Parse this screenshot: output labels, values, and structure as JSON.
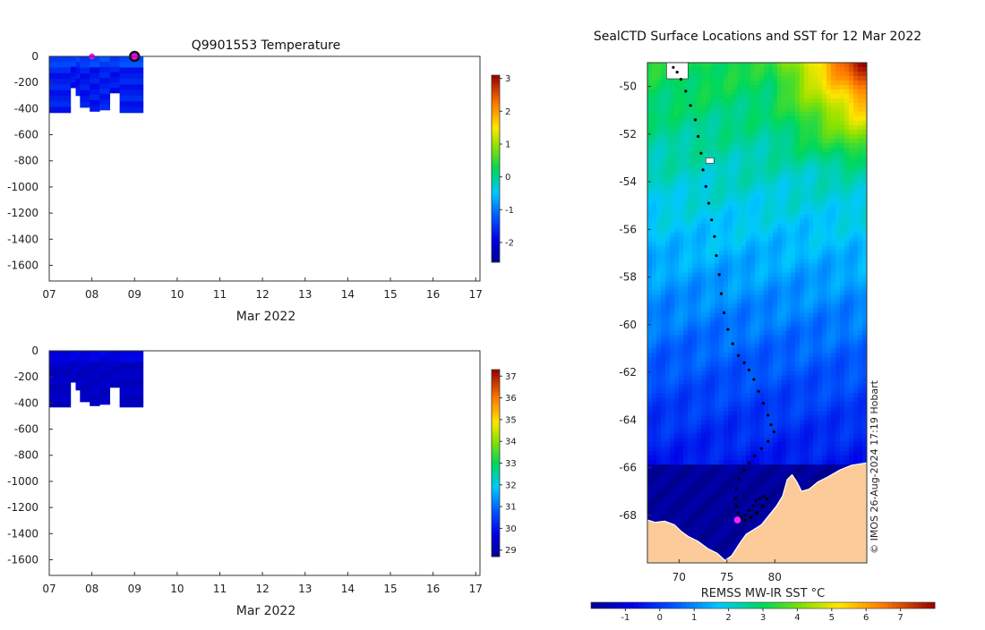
{
  "chart_data": [
    {
      "type": "heatmap",
      "title": "Q9901553  Temperature",
      "xlabel": "Mar 2022",
      "ylabel": "",
      "x_ticks": [
        "07",
        "08",
        "09",
        "10",
        "11",
        "12",
        "13",
        "14",
        "15",
        "16",
        "17"
      ],
      "x_range_days": [
        7,
        17.1
      ],
      "y_ticks": [
        0,
        -200,
        -400,
        -600,
        -800,
        -1000,
        -1200,
        -1400,
        -1600
      ],
      "ylim": [
        -1720,
        0
      ],
      "colorbar": {
        "ticks": [
          -2,
          -1,
          0,
          1,
          2,
          3
        ],
        "range": [
          -2.6,
          3.1
        ]
      },
      "profiles": [
        {
          "t0": 7.0,
          "t1": 7.5,
          "max_depth": -430,
          "value": -1.8
        },
        {
          "t0": 7.5,
          "t1": 7.62,
          "max_depth": -240,
          "value": -1.9
        },
        {
          "t0": 7.62,
          "t1": 7.72,
          "max_depth": -300,
          "value": -1.9
        },
        {
          "t0": 7.72,
          "t1": 7.95,
          "max_depth": -390,
          "value": -1.85
        },
        {
          "t0": 7.95,
          "t1": 8.18,
          "max_depth": -420,
          "value": -1.85
        },
        {
          "t0": 8.18,
          "t1": 8.42,
          "max_depth": -410,
          "value": -1.8
        },
        {
          "t0": 8.42,
          "t1": 8.65,
          "max_depth": -280,
          "value": -1.85
        },
        {
          "t0": 8.65,
          "t1": 9.2,
          "max_depth": -430,
          "value": -1.8
        }
      ],
      "markers": [
        {
          "x": 8.0,
          "y": 0,
          "color": "#ff00ff"
        },
        {
          "x": 9.0,
          "y": 0,
          "color": "#ff00ff",
          "outlined": true
        }
      ]
    },
    {
      "type": "heatmap",
      "title": "",
      "xlabel": "Mar 2022",
      "ylabel": "",
      "x_ticks": [
        "07",
        "08",
        "09",
        "10",
        "11",
        "12",
        "13",
        "14",
        "15",
        "16",
        "17"
      ],
      "x_range_days": [
        7,
        17.1
      ],
      "y_ticks": [
        0,
        -200,
        -400,
        -600,
        -800,
        -1000,
        -1200,
        -1400,
        -1600
      ],
      "ylim": [
        -1720,
        0
      ],
      "colorbar": {
        "ticks": [
          29,
          30,
          31,
          32,
          33,
          34,
          35,
          36,
          37
        ],
        "range": [
          28.7,
          37.3
        ]
      },
      "profiles": [
        {
          "t0": 7.0,
          "t1": 7.5,
          "max_depth": -430,
          "value": 29.2
        },
        {
          "t0": 7.5,
          "t1": 7.62,
          "max_depth": -240,
          "value": 29.2
        },
        {
          "t0": 7.62,
          "t1": 7.72,
          "max_depth": -300,
          "value": 29.2
        },
        {
          "t0": 7.72,
          "t1": 7.95,
          "max_depth": -390,
          "value": 29.2
        },
        {
          "t0": 7.95,
          "t1": 8.18,
          "max_depth": -420,
          "value": 29.2
        },
        {
          "t0": 8.18,
          "t1": 8.42,
          "max_depth": -410,
          "value": 29.2
        },
        {
          "t0": 8.42,
          "t1": 8.65,
          "max_depth": -280,
          "value": 29.2
        },
        {
          "t0": 8.65,
          "t1": 9.2,
          "max_depth": -430,
          "value": 29.2
        }
      ]
    },
    {
      "type": "heatmap",
      "title": "SealCTD Surface Locations and SST for 12 Mar 2022",
      "x_ticks": [
        70,
        75,
        80
      ],
      "xlim": [
        66.7,
        89.6
      ],
      "y_ticks": [
        -50,
        -52,
        -54,
        -56,
        -58,
        -60,
        -62,
        -64,
        -66,
        -68
      ],
      "ylim": [
        -70,
        -49
      ],
      "colorbar_label": "REMSS MW-IR SST °C",
      "colorbar": {
        "ticks": [
          -1,
          0,
          1,
          2,
          3,
          4,
          5,
          6,
          7
        ],
        "range": [
          -2,
          8
        ]
      },
      "credit": "© IMOS 26-Aug-2024 17:19 Hobart",
      "land_color": "#fdcb9a",
      "track": [
        [
          69.4,
          -49.2
        ],
        [
          69.8,
          -49.4
        ],
        [
          70.2,
          -49.7
        ],
        [
          70.7,
          -50.2
        ],
        [
          71.2,
          -50.8
        ],
        [
          71.7,
          -51.4
        ],
        [
          72.0,
          -52.1
        ],
        [
          72.3,
          -52.8
        ],
        [
          72.5,
          -53.5
        ],
        [
          72.8,
          -54.2
        ],
        [
          73.1,
          -54.9
        ],
        [
          73.4,
          -55.6
        ],
        [
          73.7,
          -56.3
        ],
        [
          73.9,
          -57.1
        ],
        [
          74.2,
          -57.9
        ],
        [
          74.4,
          -58.7
        ],
        [
          74.7,
          -59.5
        ],
        [
          75.1,
          -60.2
        ],
        [
          75.6,
          -60.8
        ],
        [
          76.2,
          -61.3
        ],
        [
          76.8,
          -61.6
        ],
        [
          77.3,
          -61.9
        ],
        [
          77.8,
          -62.3
        ],
        [
          78.3,
          -62.8
        ],
        [
          78.8,
          -63.3
        ],
        [
          79.3,
          -63.8
        ],
        [
          79.6,
          -64.2
        ],
        [
          79.9,
          -64.5
        ],
        [
          79.3,
          -64.9
        ],
        [
          78.6,
          -65.2
        ],
        [
          77.9,
          -65.5
        ],
        [
          77.3,
          -65.8
        ],
        [
          76.8,
          -66.1
        ],
        [
          76.3,
          -66.5
        ],
        [
          76.0,
          -66.9
        ],
        [
          75.9,
          -67.3
        ],
        [
          76.0,
          -67.6
        ],
        [
          76.2,
          -67.9
        ],
        [
          76.5,
          -68.1
        ],
        [
          76.9,
          -68.0
        ],
        [
          77.3,
          -67.8
        ],
        [
          77.7,
          -67.6
        ],
        [
          78.0,
          -67.4
        ],
        [
          78.4,
          -67.3
        ],
        [
          78.8,
          -67.2
        ],
        [
          79.2,
          -67.3
        ],
        [
          78.7,
          -67.6
        ],
        [
          78.1,
          -67.9
        ],
        [
          77.5,
          -68.1
        ],
        [
          76.9,
          -68.2
        ],
        [
          76.5,
          -68.15
        ]
      ],
      "last_position": {
        "lon": 76.1,
        "lat": -68.2,
        "color": "#ff22ff"
      }
    }
  ]
}
